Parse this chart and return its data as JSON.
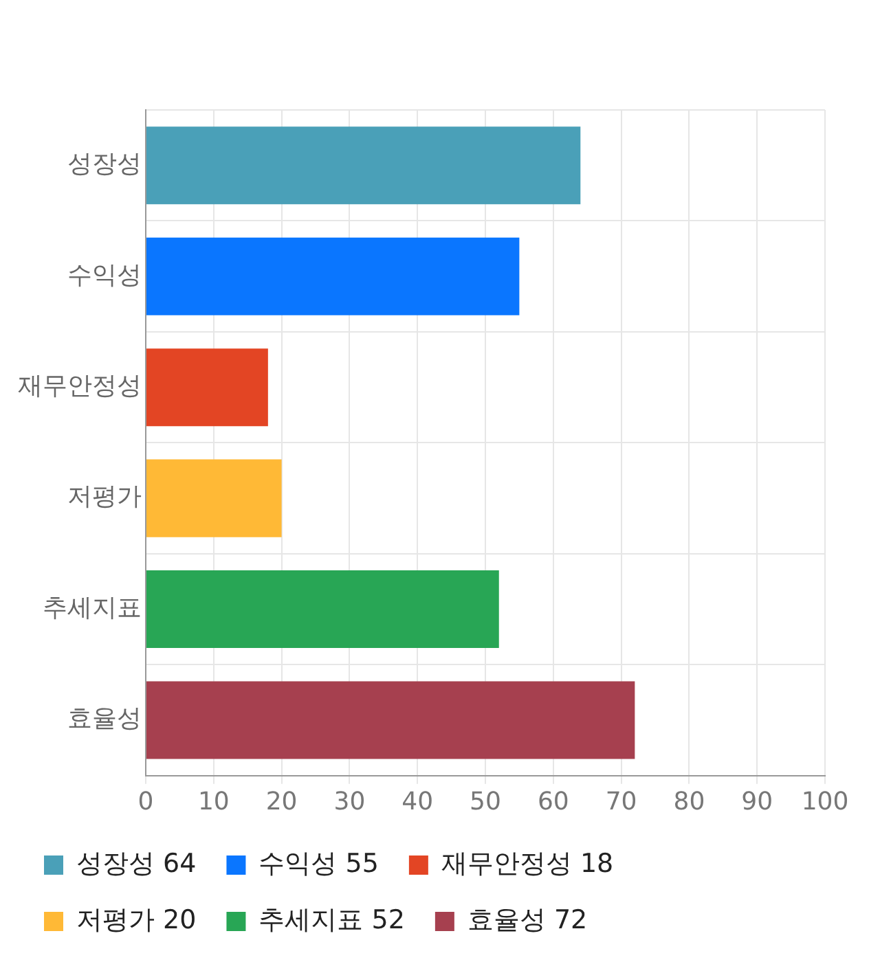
{
  "chart_data": {
    "type": "bar",
    "orientation": "horizontal",
    "stacked": true,
    "categories": [
      "성장성",
      "수익성",
      "재무안정성",
      "저평가",
      "추세지표",
      "효율성"
    ],
    "series": [
      {
        "name": "성장성 64",
        "color": "#4aa0b8",
        "values": [
          64,
          null,
          null,
          null,
          null,
          null
        ]
      },
      {
        "name": "수익성 55",
        "color": "#0a76ff",
        "values": [
          null,
          55,
          null,
          null,
          null,
          null
        ]
      },
      {
        "name": "재무안정성 18",
        "color": "#e34524",
        "values": [
          null,
          null,
          18,
          null,
          null,
          null
        ]
      },
      {
        "name": "저평가 20",
        "color": "#ffb936",
        "values": [
          null,
          null,
          null,
          20,
          null,
          null
        ]
      },
      {
        "name": "추세지표 52",
        "color": "#28a655",
        "values": [
          null,
          null,
          null,
          null,
          52,
          null
        ]
      },
      {
        "name": "효율성 72",
        "color": "#a6404f",
        "values": [
          null,
          null,
          null,
          null,
          null,
          72
        ]
      }
    ],
    "xlim": [
      0,
      100
    ],
    "xticks": [
      0,
      10,
      20,
      30,
      40,
      50,
      60,
      70,
      80,
      90,
      100
    ],
    "grid": true,
    "legend": "bottom"
  }
}
